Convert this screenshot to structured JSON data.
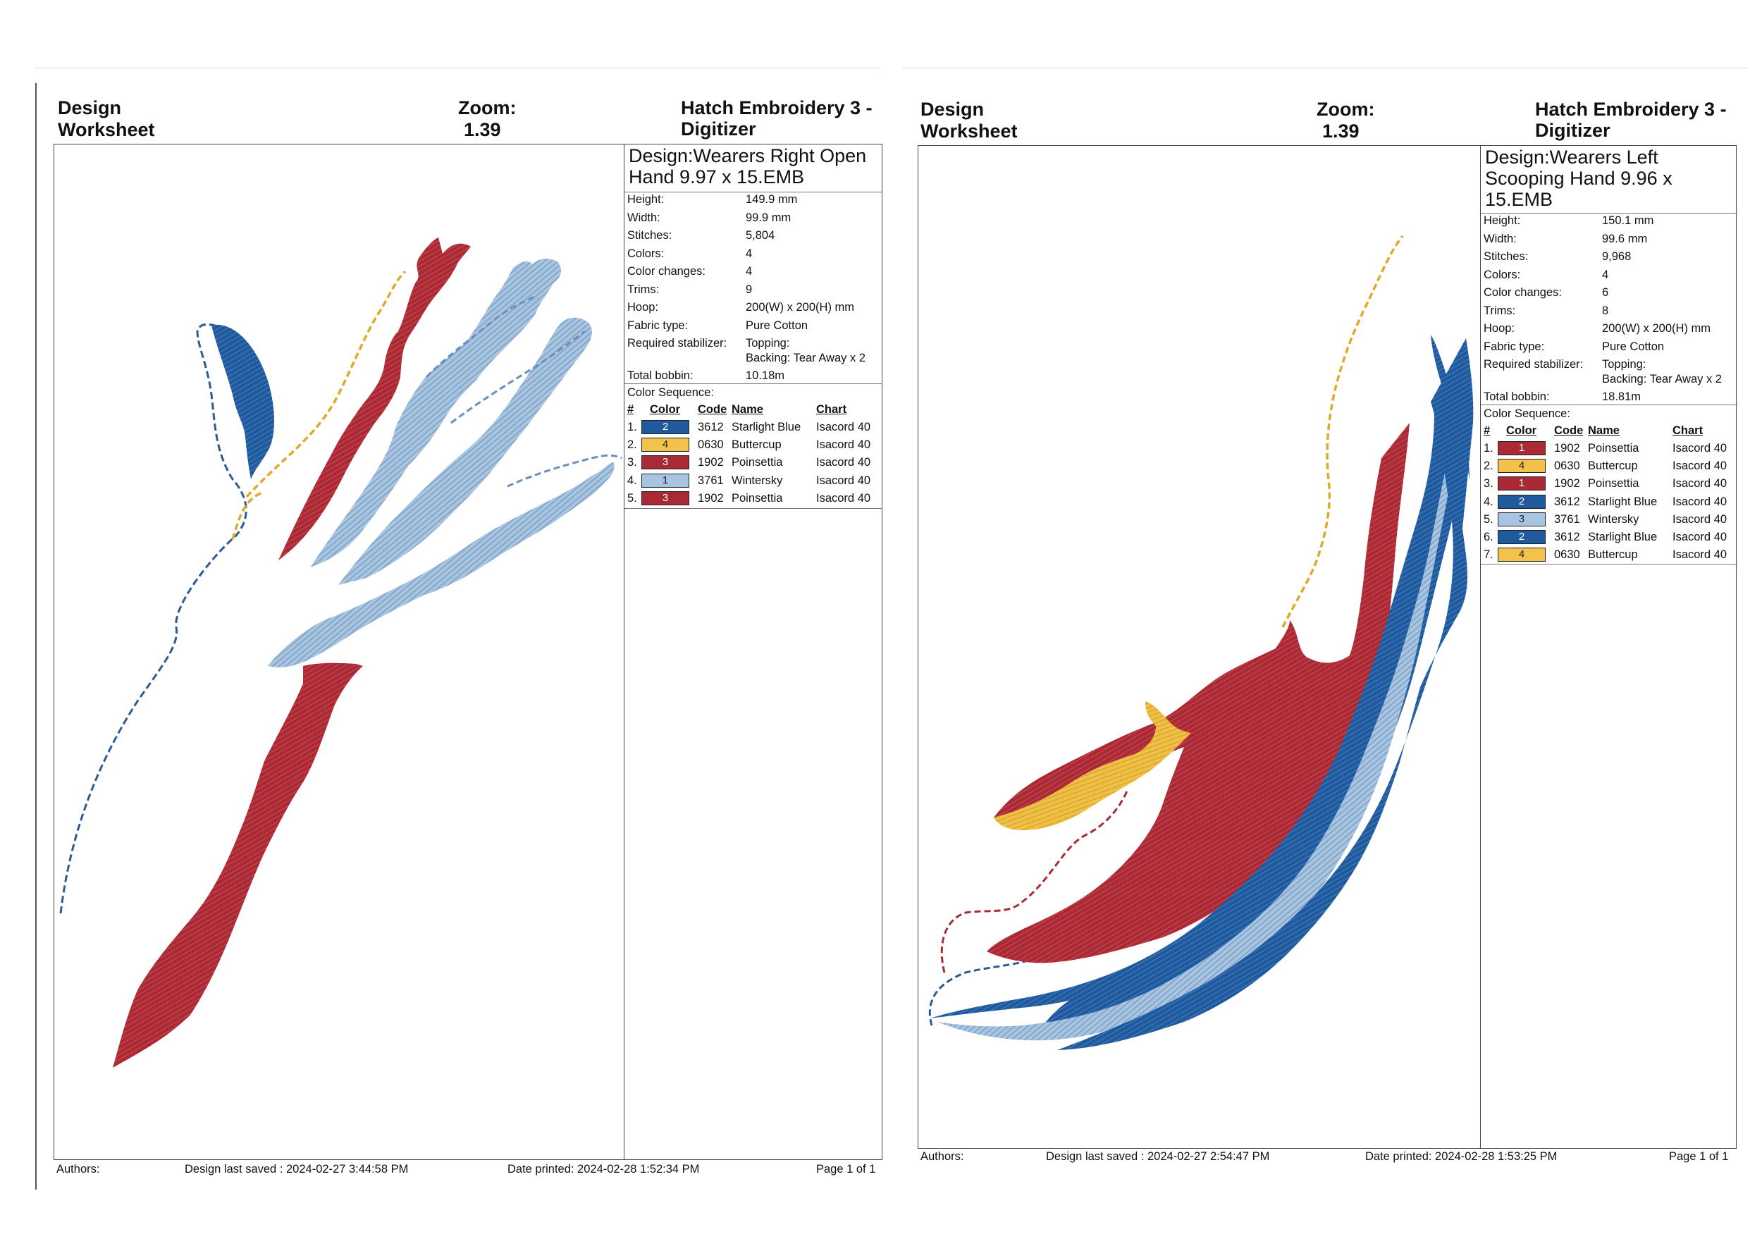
{
  "colors": {
    "starlight_blue": "#1f5a9e",
    "buttercup": "#f3c24a",
    "poinsettia": "#a92a35",
    "wintersky": "#a7c4e2"
  },
  "sheets": [
    {
      "title": "Design Worksheet",
      "zoom_label": "Zoom:",
      "zoom_value": "1.39",
      "app": "Hatch Embroidery 3 - Digitizer",
      "design_label": "Design:",
      "design_name": "Wearers Right Open Hand 9.97 x 15.EMB",
      "stats": [
        {
          "label": "Height:",
          "value": "149.9 mm"
        },
        {
          "label": "Width:",
          "value": "99.9 mm"
        },
        {
          "label": "Stitches:",
          "value": "5,804"
        },
        {
          "label": "Colors:",
          "value": "4"
        },
        {
          "label": "Color changes:",
          "value": "4"
        },
        {
          "label": "Trims:",
          "value": "9"
        },
        {
          "label": "Hoop:",
          "value": "200(W) x 200(H) mm"
        },
        {
          "label": "Fabric type:",
          "value": "Pure Cotton"
        },
        {
          "label": "Required stabilizer:",
          "value": "Topping:",
          "value2": "Backing: Tear Away x 2"
        },
        {
          "label": "Total bobbin:",
          "value": "10.18m"
        }
      ],
      "sequence_label": "Color Sequence:",
      "columns": {
        "num": "#",
        "color": "Color",
        "code": "Code",
        "name": "Name",
        "chart": "Chart"
      },
      "sequence": [
        {
          "num": "1.",
          "swatch": "2",
          "hex": "#1f5a9e",
          "code": "3612",
          "name": "Starlight Blue",
          "chart": "Isacord 40"
        },
        {
          "num": "2.",
          "swatch": "4",
          "hex": "#f3c24a",
          "code": "0630",
          "name": "Buttercup",
          "chart": "Isacord 40"
        },
        {
          "num": "3.",
          "swatch": "3",
          "hex": "#a92a35",
          "code": "1902",
          "name": "Poinsettia",
          "chart": "Isacord 40"
        },
        {
          "num": "4.",
          "swatch": "1",
          "hex": "#a7c4e2",
          "code": "3761",
          "name": "Wintersky",
          "chart": "Isacord 40"
        },
        {
          "num": "5.",
          "swatch": "3",
          "hex": "#a92a35",
          "code": "1902",
          "name": "Poinsettia",
          "chart": "Isacord 40"
        }
      ],
      "footer": {
        "authors": "Authors:",
        "saved": "Design last saved : 2024-02-27 3:44:58 PM",
        "printed": "Date printed: 2024-02-28 1:52:34 PM",
        "page": "Page 1 of 1"
      }
    },
    {
      "title": "Design Worksheet",
      "zoom_label": "Zoom:",
      "zoom_value": "1.39",
      "app": "Hatch Embroidery 3 - Digitizer",
      "design_label": "Design:",
      "design_name": "Wearers Left Scooping Hand 9.96 x 15.EMB",
      "stats": [
        {
          "label": "Height:",
          "value": "150.1 mm"
        },
        {
          "label": "Width:",
          "value": "99.6 mm"
        },
        {
          "label": "Stitches:",
          "value": "9,968"
        },
        {
          "label": "Colors:",
          "value": "4"
        },
        {
          "label": "Color changes:",
          "value": "6"
        },
        {
          "label": "Trims:",
          "value": "8"
        },
        {
          "label": "Hoop:",
          "value": "200(W) x 200(H) mm"
        },
        {
          "label": "Fabric type:",
          "value": "Pure Cotton"
        },
        {
          "label": "Required stabilizer:",
          "value": "Topping:",
          "value2": "Backing: Tear Away x 2"
        },
        {
          "label": "Total bobbin:",
          "value": "18.81m"
        }
      ],
      "sequence_label": "Color Sequence:",
      "columns": {
        "num": "#",
        "color": "Color",
        "code": "Code",
        "name": "Name",
        "chart": "Chart"
      },
      "sequence": [
        {
          "num": "1.",
          "swatch": "1",
          "hex": "#a92a35",
          "code": "1902",
          "name": "Poinsettia",
          "chart": "Isacord 40"
        },
        {
          "num": "2.",
          "swatch": "4",
          "hex": "#f3c24a",
          "code": "0630",
          "name": "Buttercup",
          "chart": "Isacord 40"
        },
        {
          "num": "3.",
          "swatch": "1",
          "hex": "#a92a35",
          "code": "1902",
          "name": "Poinsettia",
          "chart": "Isacord 40"
        },
        {
          "num": "4.",
          "swatch": "2",
          "hex": "#1f5a9e",
          "code": "3612",
          "name": "Starlight Blue",
          "chart": "Isacord 40"
        },
        {
          "num": "5.",
          "swatch": "3",
          "hex": "#a7c4e2",
          "code": "3761",
          "name": "Wintersky",
          "chart": "Isacord 40"
        },
        {
          "num": "6.",
          "swatch": "2",
          "hex": "#1f5a9e",
          "code": "3612",
          "name": "Starlight Blue",
          "chart": "Isacord 40"
        },
        {
          "num": "7.",
          "swatch": "4",
          "hex": "#f3c24a",
          "code": "0630",
          "name": "Buttercup",
          "chart": "Isacord 40"
        }
      ],
      "footer": {
        "authors": "Authors:",
        "saved": "Design last saved : 2024-02-27 2:54:47 PM",
        "printed": "Date printed: 2024-02-28 1:53:25 PM",
        "page": "Page 1 of 1"
      }
    }
  ]
}
